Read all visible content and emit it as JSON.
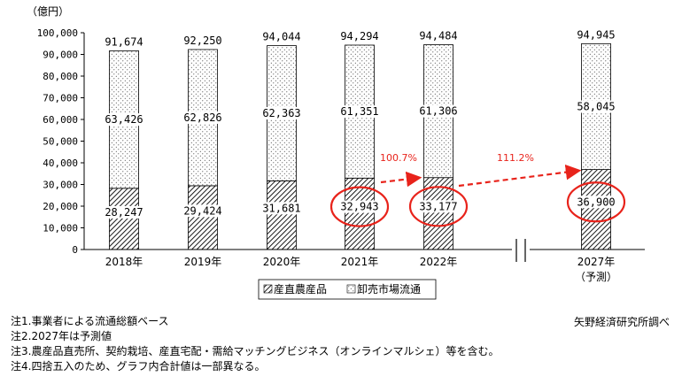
{
  "chart_data": {
    "type": "bar",
    "stacked": true,
    "unit_label": "（億円）",
    "categories": [
      "2018年",
      "2019年",
      "2020年",
      "2021年",
      "2022年",
      "2027年"
    ],
    "category_sublabels": [
      "",
      "",
      "",
      "",
      "",
      "（予測）"
    ],
    "series": [
      {
        "name": "産直農産品",
        "pattern": "diagonal-hatch",
        "values": [
          28247,
          29424,
          31681,
          32943,
          33177,
          36900
        ]
      },
      {
        "name": "卸売市場流通",
        "pattern": "dots",
        "values": [
          63426,
          62826,
          62363,
          61351,
          61306,
          58045
        ]
      }
    ],
    "totals": [
      91674,
      92250,
      94044,
      94294,
      94484,
      94945
    ],
    "value_labels_bottom": [
      "28,247",
      "29,424",
      "31,681",
      "32,943",
      "33,177",
      "36,900"
    ],
    "value_labels_top": [
      "63,426",
      "62,826",
      "62,363",
      "61,351",
      "61,306",
      "58,045"
    ],
    "total_labels": [
      "91,674",
      "92,250",
      "94,044",
      "94,294",
      "94,484",
      "94,945"
    ],
    "ylim": [
      0,
      100000
    ],
    "yticks": [
      0,
      10000,
      20000,
      30000,
      40000,
      50000,
      60000,
      70000,
      80000,
      90000,
      100000
    ],
    "ytick_labels": [
      "0",
      "10,000",
      "20,000",
      "30,000",
      "40,000",
      "50,000",
      "60,000",
      "70,000",
      "80,000",
      "90,000",
      "100,000"
    ],
    "annotations": [
      {
        "text": "100.7%",
        "from_index": 3,
        "to_index": 4,
        "color": "#e8231b"
      },
      {
        "text": "111.2%",
        "from_index": 4,
        "to_index": 5,
        "color": "#e8231b"
      }
    ],
    "highlighted_indices": [
      3,
      4,
      5
    ],
    "axis_break_between": [
      4,
      5
    ],
    "legend": [
      "産直農産品",
      "卸売市場流通"
    ],
    "legend_position": "bottom-center",
    "grid": false
  },
  "notes": [
    "注1.事業者による流通総額ベース",
    "注2.2027年は予測値",
    "注3.農産品直売所、契約栽培、産直宅配・需給マッチングビジネス（オンラインマルシェ）等を含む。",
    "注4.四捨五入のため、グラフ内合計値は一部異なる。"
  ],
  "source": "矢野経済研究所調べ",
  "colors": {
    "annotation": "#e8231b",
    "bar_stroke": "#000000"
  }
}
